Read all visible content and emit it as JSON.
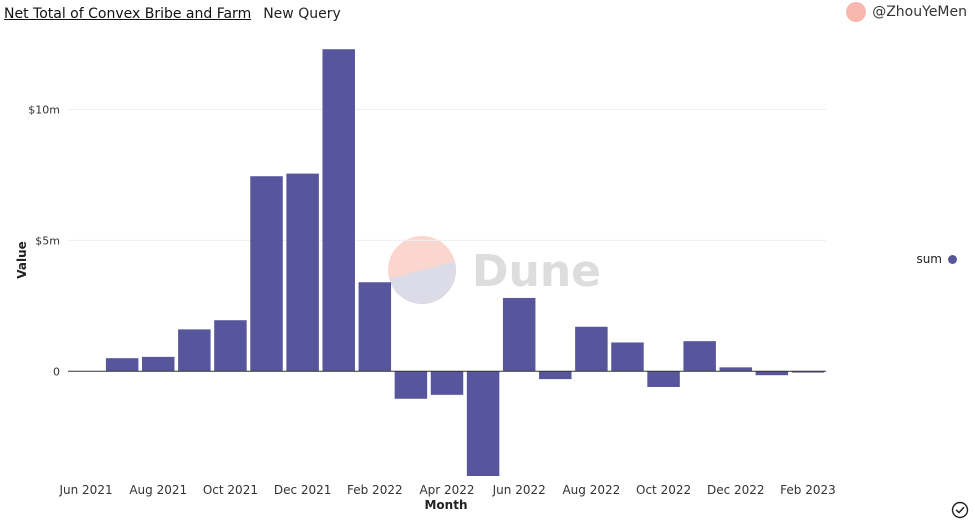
{
  "header": {
    "title": "Net Total of Convex Bribe and Farm",
    "subtitle": "New Query"
  },
  "author": {
    "handle": "@ZhouYeMen",
    "avatar_color": "#f7b8b0"
  },
  "watermark": {
    "text": "Dune"
  },
  "legend": {
    "label": "sum"
  },
  "colors": {
    "bar": "#57559b",
    "grid": "#eeeeee",
    "axis": "#333333",
    "watermark_text": "#dddddd",
    "watermark_pink": "#fbd6cf",
    "watermark_lavender": "#dcdbe8"
  },
  "icons": {
    "status": "check-circle-icon"
  },
  "chart_data": {
    "type": "bar",
    "title": "",
    "xlabel": "Month",
    "ylabel": "Value",
    "ylim": [
      -4000000,
      12500000
    ],
    "yticks": [
      {
        "value": 0,
        "label": "0"
      },
      {
        "value": 5000000,
        "label": "$5m"
      },
      {
        "value": 10000000,
        "label": "$10m"
      }
    ],
    "categories": [
      "Jun 2021",
      "Jul 2021",
      "Aug 2021",
      "Sep 2021",
      "Oct 2021",
      "Nov 2021",
      "Dec 2021",
      "Jan 2022",
      "Feb 2022",
      "Mar 2022",
      "Apr 2022",
      "May 2022",
      "Jun 2022",
      "Jul 2022",
      "Aug 2022",
      "Sep 2022",
      "Oct 2022",
      "Nov 2022",
      "Dec 2022",
      "Jan 2023",
      "Feb 2023"
    ],
    "xtick_labels": [
      "Jun 2021",
      "Aug 2021",
      "Oct 2021",
      "Dec 2021",
      "Feb 2022",
      "Apr 2022",
      "Jun 2022",
      "Aug 2022",
      "Oct 2022",
      "Dec 2022",
      "Feb 2023"
    ],
    "series": [
      {
        "name": "sum",
        "values": [
          0,
          500000,
          550000,
          1600000,
          1950000,
          7450000,
          7550000,
          12300000,
          3400000,
          -1050000,
          -900000,
          -4000000,
          2800000,
          -300000,
          1700000,
          1100000,
          -600000,
          1150000,
          150000,
          -150000,
          -50000
        ]
      }
    ],
    "grid": true,
    "legend_position": "right"
  }
}
